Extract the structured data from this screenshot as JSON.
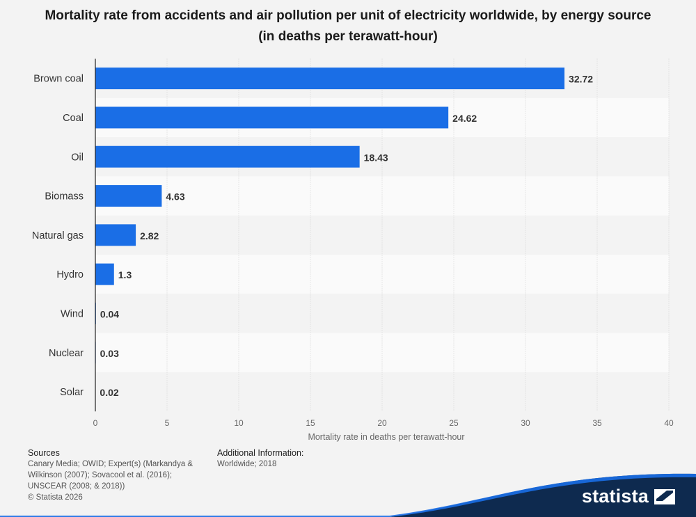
{
  "title": "Mortality rate from accidents and air pollution per unit of electricity worldwide, by energy source (in deaths per terawatt-hour)",
  "chart_data": {
    "type": "bar",
    "orientation": "horizontal",
    "title": "Mortality rate from accidents and air pollution per unit of electricity worldwide, by energy source (in deaths per terawatt-hour)",
    "categories": [
      "Brown coal",
      "Coal",
      "Oil",
      "Biomass",
      "Natural gas",
      "Hydro",
      "Wind",
      "Nuclear",
      "Solar"
    ],
    "values": [
      32.72,
      24.62,
      18.43,
      4.63,
      2.82,
      1.3,
      0.04,
      0.03,
      0.02
    ],
    "value_labels": [
      "32.72",
      "24.62",
      "18.43",
      "4.63",
      "2.82",
      "1.3",
      "0.04",
      "0.03",
      "0.02"
    ],
    "xlabel": "Mortality rate in deaths per terawatt-hour",
    "ylabel": "",
    "xlim": [
      0,
      40
    ],
    "xticks": [
      0,
      5,
      10,
      15,
      20,
      25,
      30,
      35,
      40
    ],
    "xtick_labels": [
      "0",
      "5",
      "10",
      "15",
      "20",
      "25",
      "30",
      "35",
      "40"
    ],
    "grid": true,
    "bar_color": "#1a6ee6"
  },
  "footer": {
    "sources_heading": "Sources",
    "sources_lines": [
      "Canary Media; OWID; Expert(s) (Markandya &",
      "Wilkinson (2007); Sovacool et al. (2016);",
      "UNSCEAR (2008; & 2018))",
      "© Statista 2026"
    ],
    "additional_heading": "Additional Information:",
    "additional_text": "Worldwide; 2018"
  },
  "brand": {
    "name": "statista",
    "logo_icon": "statista-logo-icon",
    "wave_color": "#0e2a4f",
    "accent_color": "#1a6ee6"
  }
}
